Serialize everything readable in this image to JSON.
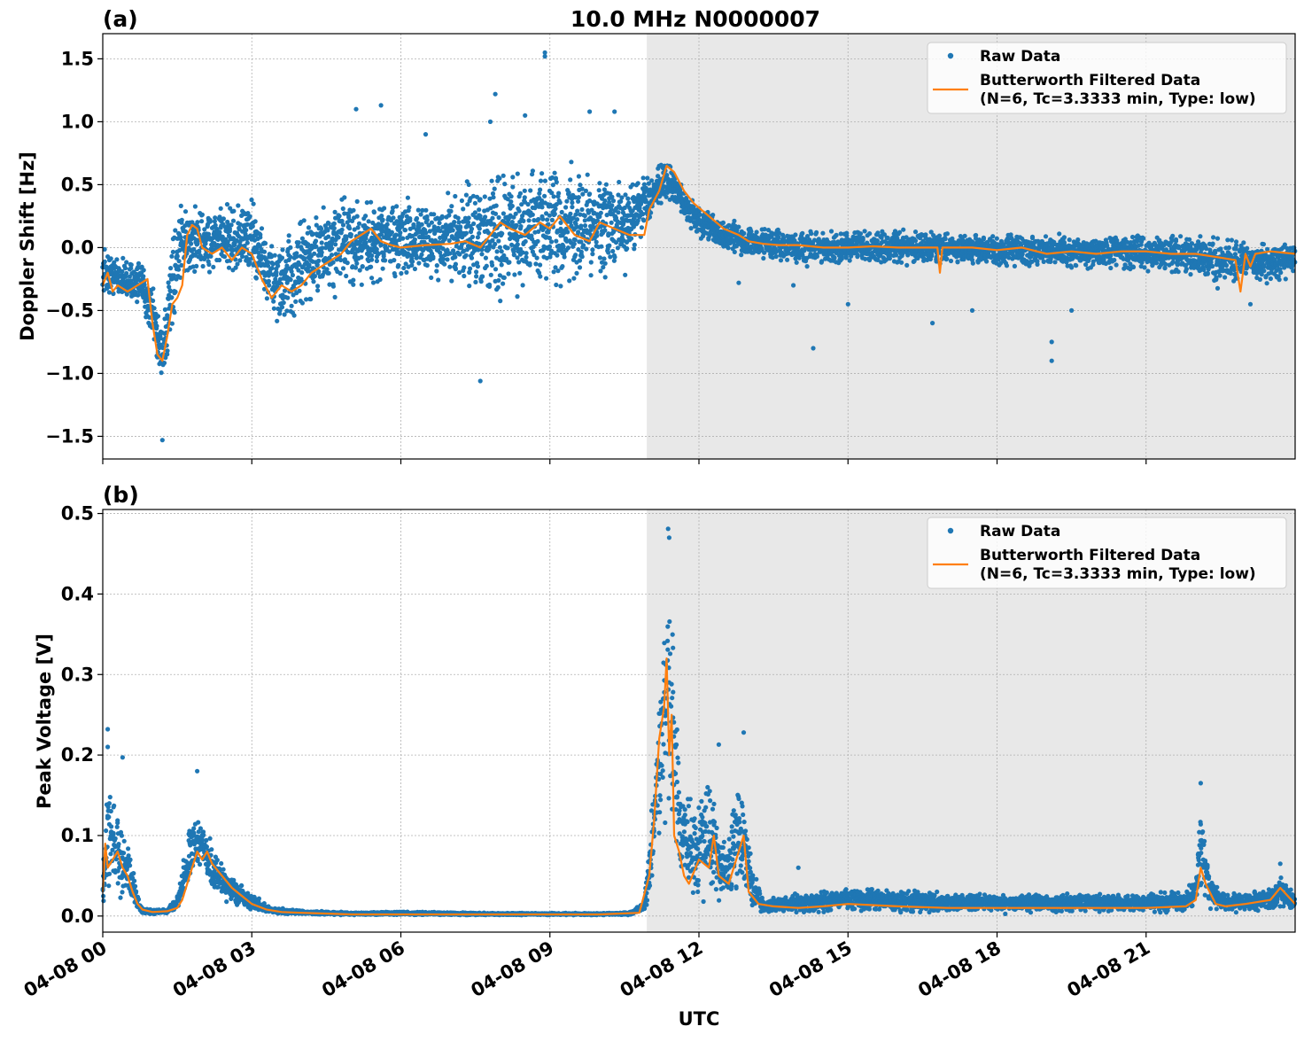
{
  "chart_data": [
    {
      "panel": "(a)",
      "type": "scatter",
      "title": "10.0 MHz N0000007",
      "ylabel": "Doppler Shift [Hz]",
      "xlabel": "",
      "ylim": [
        -1.68,
        1.7
      ],
      "xlim_hours": [
        0,
        24
      ],
      "yticks": [
        -1.5,
        -1.0,
        -0.5,
        0.0,
        0.5,
        1.0,
        1.5
      ],
      "ytick_labels": [
        "−1.5",
        "−1.0",
        "−0.5",
        "0.0",
        "0.5",
        "1.0",
        "1.5"
      ],
      "grid": true,
      "legend_position": "top-right",
      "shaded_region_hours": [
        10.95,
        24
      ],
      "series": [
        {
          "name": "Raw Data",
          "kind": "scatter",
          "color": "#1f77b4",
          "envelope_x": [
            0,
            0.4,
            0.8,
            1.0,
            1.2,
            1.4,
            1.6,
            2.0,
            2.5,
            3.0,
            3.3,
            3.6,
            4.0,
            4.5,
            5.0,
            5.5,
            6.0,
            6.5,
            7.0,
            7.5,
            8.0,
            8.5,
            9.0,
            9.5,
            10.0,
            10.5,
            11.0,
            11.3,
            11.5,
            11.8,
            12.0,
            12.5,
            13.0,
            13.5,
            14.0,
            15.0,
            16.0,
            17.0,
            18.0,
            19.0,
            20.0,
            21.0,
            22.0,
            22.5,
            23.0,
            23.5,
            24.0
          ],
          "envelope_low": [
            -0.4,
            -0.45,
            -0.5,
            -0.8,
            -1.2,
            -0.7,
            -0.3,
            -0.25,
            -0.2,
            -0.3,
            -0.55,
            -0.7,
            -0.6,
            -0.45,
            -0.4,
            -0.35,
            -0.3,
            -0.3,
            -0.3,
            -0.4,
            -0.5,
            -0.45,
            -0.4,
            -0.35,
            -0.3,
            -0.25,
            0.2,
            0.35,
            0.3,
            0.15,
            0.05,
            -0.05,
            -0.1,
            -0.12,
            -0.15,
            -0.15,
            -0.15,
            -0.15,
            -0.18,
            -0.18,
            -0.18,
            -0.2,
            -0.25,
            -0.35,
            -0.3,
            -0.3,
            -0.25
          ],
          "envelope_high": [
            0.0,
            -0.05,
            -0.1,
            -0.2,
            -0.5,
            0.1,
            0.4,
            0.35,
            0.35,
            0.45,
            0.2,
            0.1,
            0.3,
            0.4,
            0.5,
            0.45,
            0.45,
            0.4,
            0.45,
            0.6,
            0.7,
            0.75,
            0.75,
            0.7,
            0.65,
            0.6,
            0.6,
            0.72,
            0.65,
            0.45,
            0.35,
            0.25,
            0.2,
            0.18,
            0.15,
            0.15,
            0.15,
            0.15,
            0.13,
            0.12,
            0.12,
            0.12,
            0.12,
            0.1,
            0.08,
            0.08,
            0.05
          ],
          "outliers": [
            [
              1.2,
              -1.53
            ],
            [
              8.9,
              1.55
            ],
            [
              8.9,
              1.52
            ],
            [
              7.9,
              1.22
            ],
            [
              5.1,
              1.1
            ],
            [
              5.6,
              1.13
            ],
            [
              6.5,
              0.9
            ],
            [
              7.8,
              1.0
            ],
            [
              8.5,
              1.05
            ],
            [
              9.8,
              1.08
            ],
            [
              10.3,
              1.08
            ],
            [
              7.6,
              -1.06
            ],
            [
              14.3,
              -0.8
            ],
            [
              19.1,
              -0.9
            ],
            [
              19.1,
              -0.75
            ],
            [
              16.7,
              -0.6
            ],
            [
              17.5,
              -0.5
            ],
            [
              19.5,
              -0.5
            ],
            [
              23.1,
              -0.45
            ],
            [
              13.9,
              -0.3
            ],
            [
              12.8,
              -0.28
            ],
            [
              15.0,
              -0.45
            ]
          ]
        },
        {
          "name": "Butterworth Filtered Data\n(N=6, Tc=3.3333 min, Type: low)",
          "kind": "line",
          "color": "#ff7f0e",
          "x": [
            0,
            0.1,
            0.2,
            0.3,
            0.5,
            0.7,
            0.9,
            1.0,
            1.1,
            1.2,
            1.3,
            1.4,
            1.5,
            1.6,
            1.7,
            1.8,
            1.9,
            2.0,
            2.2,
            2.4,
            2.6,
            2.8,
            3.0,
            3.2,
            3.4,
            3.6,
            3.8,
            4.0,
            4.2,
            4.4,
            4.6,
            4.8,
            5.0,
            5.2,
            5.4,
            5.6,
            5.8,
            6.0,
            6.5,
            7.0,
            7.3,
            7.6,
            7.8,
            8.0,
            8.2,
            8.5,
            8.8,
            9.0,
            9.2,
            9.5,
            9.8,
            10.0,
            10.3,
            10.6,
            10.9,
            11.0,
            11.2,
            11.35,
            11.5,
            11.7,
            11.9,
            12.2,
            12.5,
            12.8,
            13.0,
            13.3,
            13.6,
            14.0,
            14.5,
            15.0,
            15.5,
            16.0,
            16.5,
            16.8,
            16.85,
            16.9,
            17.5,
            18.0,
            18.5,
            19.0,
            19.5,
            20.0,
            20.5,
            21.0,
            21.5,
            22.0,
            22.5,
            22.8,
            22.9,
            23.0,
            23.1,
            23.2,
            23.5,
            24.0
          ],
          "y": [
            -0.3,
            -0.2,
            -0.35,
            -0.3,
            -0.35,
            -0.3,
            -0.25,
            -0.6,
            -0.85,
            -0.9,
            -0.7,
            -0.45,
            -0.4,
            -0.3,
            0.1,
            0.18,
            0.15,
            0.0,
            -0.05,
            0.0,
            -0.1,
            0.0,
            -0.05,
            -0.25,
            -0.4,
            -0.3,
            -0.35,
            -0.3,
            -0.2,
            -0.15,
            -0.1,
            -0.05,
            0.05,
            0.1,
            0.15,
            0.05,
            0.02,
            0.0,
            0.02,
            0.03,
            0.05,
            0.0,
            0.1,
            0.2,
            0.15,
            0.1,
            0.2,
            0.15,
            0.25,
            0.1,
            0.05,
            0.2,
            0.15,
            0.1,
            0.1,
            0.3,
            0.45,
            0.65,
            0.6,
            0.45,
            0.35,
            0.25,
            0.15,
            0.1,
            0.05,
            0.03,
            0.02,
            0.02,
            0.0,
            0.0,
            0.01,
            0.0,
            0.0,
            0.0,
            -0.2,
            0.0,
            0.0,
            -0.02,
            0.0,
            -0.05,
            -0.03,
            -0.05,
            -0.03,
            -0.03,
            -0.05,
            -0.05,
            -0.08,
            -0.1,
            -0.35,
            -0.05,
            -0.15,
            -0.05,
            -0.03,
            -0.05
          ]
        }
      ]
    },
    {
      "panel": "(b)",
      "type": "scatter",
      "title": "",
      "ylabel": "Peak Voltage [V]",
      "xlabel": "UTC",
      "ylim": [
        -0.02,
        0.505
      ],
      "xlim_hours": [
        0,
        24
      ],
      "yticks": [
        0.0,
        0.1,
        0.2,
        0.3,
        0.4,
        0.5
      ],
      "ytick_labels": [
        "0.0",
        "0.1",
        "0.2",
        "0.3",
        "0.4",
        "0.5"
      ],
      "xtick_hours": [
        0,
        3,
        6,
        9,
        12,
        15,
        18,
        21
      ],
      "xtick_labels": [
        "04-08 00",
        "04-08 03",
        "04-08 06",
        "04-08 09",
        "04-08 12",
        "04-08 15",
        "04-08 18",
        "04-08 21"
      ],
      "grid": true,
      "legend_position": "top-right",
      "shaded_region_hours": [
        10.95,
        24
      ],
      "series": [
        {
          "name": "Raw Data",
          "kind": "scatter",
          "color": "#1f77b4",
          "envelope_x": [
            0,
            0.1,
            0.2,
            0.3,
            0.4,
            0.5,
            0.6,
            0.7,
            0.8,
            1.0,
            1.3,
            1.5,
            1.7,
            1.8,
            1.9,
            2.0,
            2.1,
            2.2,
            2.4,
            2.6,
            2.8,
            3.0,
            3.3,
            3.6,
            4.0,
            5.0,
            6.0,
            8.0,
            10.0,
            10.6,
            10.9,
            11.0,
            11.1,
            11.2,
            11.3,
            11.35,
            11.45,
            11.6,
            11.8,
            12.0,
            12.2,
            12.4,
            12.6,
            12.8,
            12.95,
            13.1,
            13.3,
            13.6,
            14.0,
            15.0,
            16.0,
            17.0,
            18.0,
            19.0,
            20.0,
            21.0,
            21.8,
            22.0,
            22.1,
            22.2,
            22.3,
            22.5,
            23.0,
            23.5,
            23.7,
            24.0
          ],
          "envelope_low": [
            0.01,
            0.02,
            0.03,
            0.02,
            0.02,
            0.02,
            0.01,
            0.005,
            0.002,
            0.002,
            0.002,
            0.005,
            0.02,
            0.04,
            0.05,
            0.05,
            0.04,
            0.03,
            0.02,
            0.01,
            0.008,
            0.005,
            0.003,
            0.002,
            0.002,
            0.001,
            0.001,
            0.001,
            0.001,
            0.001,
            0.005,
            0.02,
            0.05,
            0.08,
            0.1,
            0.12,
            0.1,
            0.05,
            0.02,
            0.01,
            0.01,
            0.01,
            0.01,
            0.01,
            0.01,
            0.005,
            0.003,
            0.003,
            0.003,
            0.003,
            0.003,
            0.003,
            0.003,
            0.003,
            0.003,
            0.003,
            0.003,
            0.005,
            0.01,
            0.01,
            0.008,
            0.005,
            0.003,
            0.003,
            0.005,
            0.005
          ],
          "envelope_high": [
            0.05,
            0.19,
            0.15,
            0.14,
            0.12,
            0.1,
            0.07,
            0.03,
            0.01,
            0.008,
            0.01,
            0.03,
            0.1,
            0.15,
            0.14,
            0.13,
            0.11,
            0.09,
            0.07,
            0.05,
            0.04,
            0.03,
            0.015,
            0.01,
            0.007,
            0.005,
            0.006,
            0.004,
            0.004,
            0.005,
            0.02,
            0.1,
            0.2,
            0.3,
            0.4,
            0.48,
            0.4,
            0.2,
            0.15,
            0.17,
            0.21,
            0.12,
            0.1,
            0.22,
            0.15,
            0.06,
            0.02,
            0.025,
            0.03,
            0.04,
            0.035,
            0.03,
            0.03,
            0.03,
            0.03,
            0.03,
            0.035,
            0.06,
            0.16,
            0.1,
            0.05,
            0.03,
            0.03,
            0.04,
            0.06,
            0.03
          ],
          "outliers": [
            [
              0.1,
              0.232
            ],
            [
              0.1,
              0.21
            ],
            [
              11.38,
              0.481
            ],
            [
              11.4,
              0.47
            ],
            [
              12.4,
              0.213
            ],
            [
              12.9,
              0.228
            ],
            [
              22.1,
              0.165
            ],
            [
              14.0,
              0.06
            ],
            [
              23.7,
              0.065
            ],
            [
              1.9,
              0.18
            ],
            [
              0.4,
              0.197
            ]
          ]
        },
        {
          "name": "Butterworth Filtered Data\n(N=6, Tc=3.3333 min, Type: low)",
          "kind": "line",
          "color": "#ff7f0e",
          "x": [
            0,
            0.05,
            0.1,
            0.2,
            0.3,
            0.4,
            0.5,
            0.6,
            0.7,
            0.8,
            1.0,
            1.3,
            1.5,
            1.6,
            1.7,
            1.8,
            1.9,
            2.0,
            2.1,
            2.2,
            2.4,
            2.6,
            2.8,
            3.0,
            3.3,
            3.6,
            4.0,
            5.0,
            6.0,
            8.0,
            10.0,
            10.8,
            11.0,
            11.1,
            11.2,
            11.3,
            11.35,
            11.4,
            11.45,
            11.5,
            11.6,
            11.7,
            11.8,
            12.0,
            12.2,
            12.3,
            12.4,
            12.6,
            12.8,
            12.9,
            13.0,
            13.2,
            13.5,
            14.0,
            14.5,
            15.0,
            16.0,
            17.0,
            18.0,
            19.0,
            20.0,
            21.0,
            21.8,
            22.0,
            22.1,
            22.2,
            22.4,
            22.6,
            23.0,
            23.5,
            23.7,
            24.0
          ],
          "y": [
            0.03,
            0.09,
            0.06,
            0.07,
            0.08,
            0.06,
            0.05,
            0.03,
            0.015,
            0.008,
            0.005,
            0.006,
            0.01,
            0.02,
            0.04,
            0.06,
            0.08,
            0.07,
            0.08,
            0.065,
            0.05,
            0.035,
            0.025,
            0.015,
            0.008,
            0.005,
            0.004,
            0.002,
            0.002,
            0.002,
            0.002,
            0.004,
            0.05,
            0.12,
            0.22,
            0.26,
            0.32,
            0.2,
            0.25,
            0.1,
            0.08,
            0.05,
            0.04,
            0.07,
            0.06,
            0.1,
            0.05,
            0.04,
            0.08,
            0.1,
            0.03,
            0.015,
            0.012,
            0.01,
            0.012,
            0.015,
            0.012,
            0.01,
            0.01,
            0.01,
            0.01,
            0.01,
            0.012,
            0.02,
            0.06,
            0.04,
            0.015,
            0.012,
            0.015,
            0.02,
            0.035,
            0.015
          ]
        }
      ]
    }
  ]
}
